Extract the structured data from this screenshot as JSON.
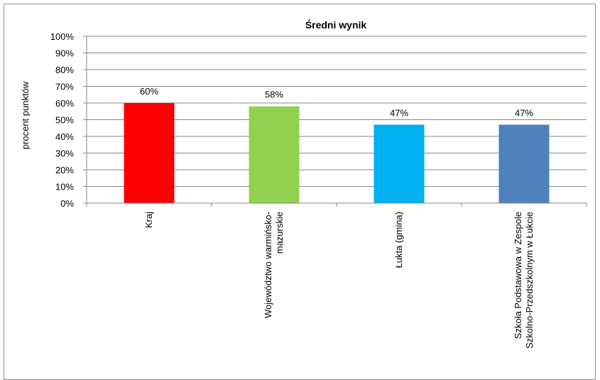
{
  "chart_data": {
    "type": "bar",
    "title": "Średni wynik",
    "ylabel": "procent punktów",
    "xlabel": "",
    "ylim": [
      0,
      100
    ],
    "yticks": [
      "0%",
      "10%",
      "20%",
      "30%",
      "40%",
      "50%",
      "60%",
      "70%",
      "80%",
      "90%",
      "100%"
    ],
    "grid": true,
    "legend": "none",
    "categories": [
      [
        "Kraj"
      ],
      [
        "Województwo warmińsko-",
        "mazurskie"
      ],
      [
        "Łukta (gmina)"
      ],
      [
        "Szkoła Podstawowa w Zespole",
        "Szkolno-Przedszkolnym w Łukcie"
      ]
    ],
    "values": [
      60,
      58,
      47,
      47
    ],
    "data_labels": [
      "60%",
      "58%",
      "47%",
      "47%"
    ],
    "colors": [
      "#ff0000",
      "#92d050",
      "#00b0f0",
      "#4f81bd"
    ]
  }
}
